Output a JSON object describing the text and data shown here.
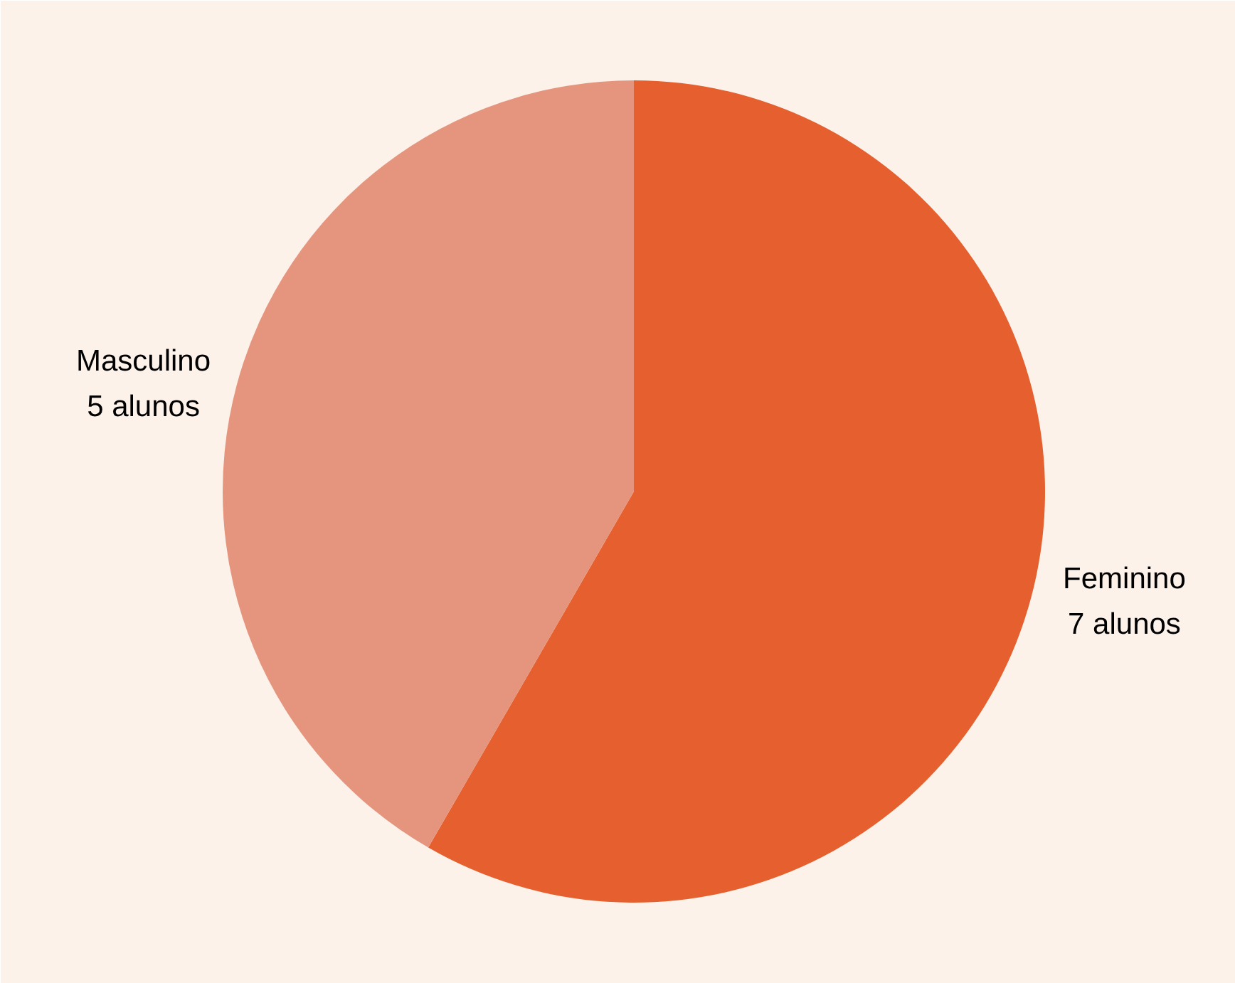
{
  "chart_data": {
    "type": "pie",
    "categories": [
      "Feminino",
      "Masculino"
    ],
    "values": [
      7,
      5
    ],
    "colors": [
      "#e55f2f",
      "#e5957d"
    ],
    "value_labels": [
      "7 alunos",
      "5 alunos"
    ],
    "legend": false
  }
}
